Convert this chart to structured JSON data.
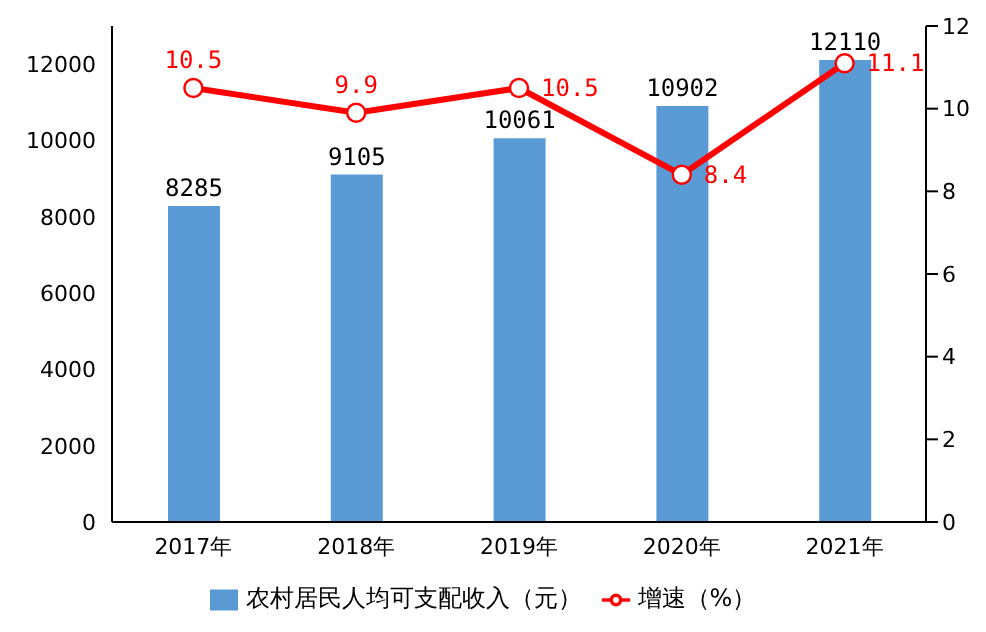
{
  "chart_data": {
    "type": "bar",
    "categories": [
      "2017年",
      "2018年",
      "2019年",
      "2020年",
      "2021年"
    ],
    "series": [
      {
        "name": "农村居民人均可支配收入（元）",
        "color": "#5b9bd5",
        "values": [
          8285,
          9105,
          10061,
          10902,
          12110
        ]
      },
      {
        "name": "增速（%）",
        "type": "line",
        "axis": "y2",
        "color": "#ff0000",
        "values": [
          10.5,
          9.9,
          10.5,
          8.4,
          11.1
        ]
      }
    ],
    "ylim": [
      0,
      13000
    ],
    "yticks": [
      0,
      2000,
      4000,
      6000,
      8000,
      10000,
      12000
    ],
    "y2lim": [
      0,
      12
    ],
    "y2ticks": [
      0,
      2,
      4,
      6,
      8,
      10,
      12
    ],
    "data_labels": true,
    "legend": "bottom",
    "grid": false,
    "marker": "circle",
    "line_style": "solid"
  }
}
